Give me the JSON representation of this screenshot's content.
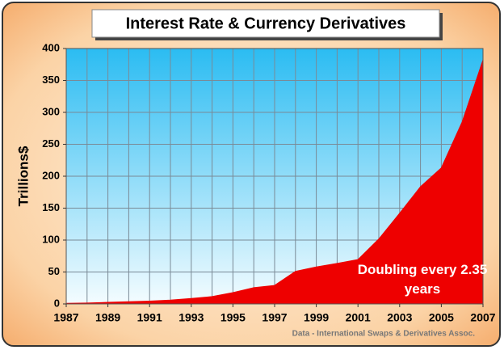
{
  "chart_data": {
    "type": "area",
    "title": "Interest Rate & Currency Derivatives",
    "y_label": "Trillions$",
    "x": [
      1987,
      1988,
      1989,
      1990,
      1991,
      1992,
      1993,
      1994,
      1995,
      1996,
      1997,
      1998,
      1999,
      2000,
      2001,
      2002,
      2003,
      2004,
      2005,
      2006,
      2007
    ],
    "values": [
      1,
      1.5,
      2.5,
      3.5,
      4.5,
      6,
      8.5,
      11.5,
      17.7,
      25.5,
      29,
      51,
      58,
      63.5,
      69.5,
      101.7,
      142,
      183.6,
      213,
      285,
      382
    ],
    "color": "#ee0000",
    "xlim": [
      1987,
      2007
    ],
    "xticks": [
      1987,
      1989,
      1991,
      1993,
      1995,
      1997,
      1999,
      2001,
      2003,
      2005,
      2007
    ],
    "ylim": [
      0,
      400
    ],
    "yticks": [
      0,
      50,
      100,
      150,
      200,
      250,
      300,
      350,
      400
    ],
    "grid": true,
    "annotation": "Doubling every 2.35 years",
    "source": "Data - International Swaps & Derivatives Assoc."
  }
}
